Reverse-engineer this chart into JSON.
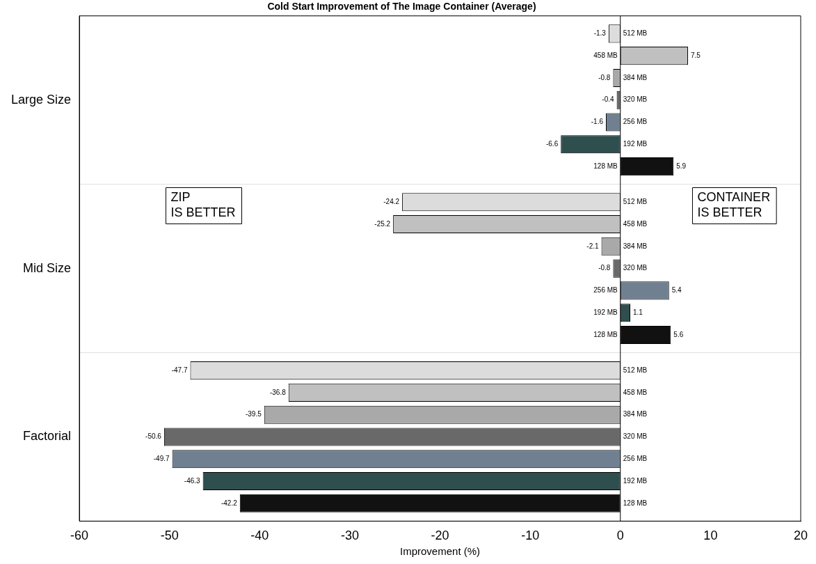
{
  "chart_data": {
    "type": "bar",
    "orientation": "horizontal",
    "title": "Cold Start Improvement of The Image Container (Average)",
    "xlabel": "Improvement (%)",
    "categories": [
      "Large Size",
      "Mid Size",
      "Factorial"
    ],
    "series": [
      {
        "name": "512 MB",
        "color": "#dcdcdc",
        "values": [
          -1.3,
          -24.2,
          -47.7
        ]
      },
      {
        "name": "458 MB",
        "color": "#c0c0c0",
        "values": [
          7.5,
          -25.2,
          -36.8
        ]
      },
      {
        "name": "384 MB",
        "color": "#a9a9a9",
        "values": [
          -0.8,
          -2.1,
          -39.5
        ]
      },
      {
        "name": "320 MB",
        "color": "#696969",
        "values": [
          -0.4,
          -0.8,
          -50.6
        ]
      },
      {
        "name": "256 MB",
        "color": "#708090",
        "values": [
          -1.6,
          5.4,
          -49.7
        ]
      },
      {
        "name": "192 MB",
        "color": "#2f4f4f",
        "values": [
          -6.6,
          1.1,
          -46.3
        ]
      },
      {
        "name": "128 MB",
        "color": "#111111",
        "values": [
          5.9,
          5.6,
          -42.2
        ]
      }
    ],
    "xlim": [
      -60,
      20
    ],
    "xticks": [
      -60,
      -50,
      -40,
      -30,
      -20,
      -10,
      0,
      10,
      20
    ],
    "ref_lines": [
      {
        "axis": "x",
        "value": 0,
        "color": "#000000"
      }
    ],
    "annotations": [
      "ZIP\nIS BETTER",
      "CONTAINER\nIS BETTER"
    ],
    "grid": "y",
    "legend": false,
    "data_labels": true
  }
}
